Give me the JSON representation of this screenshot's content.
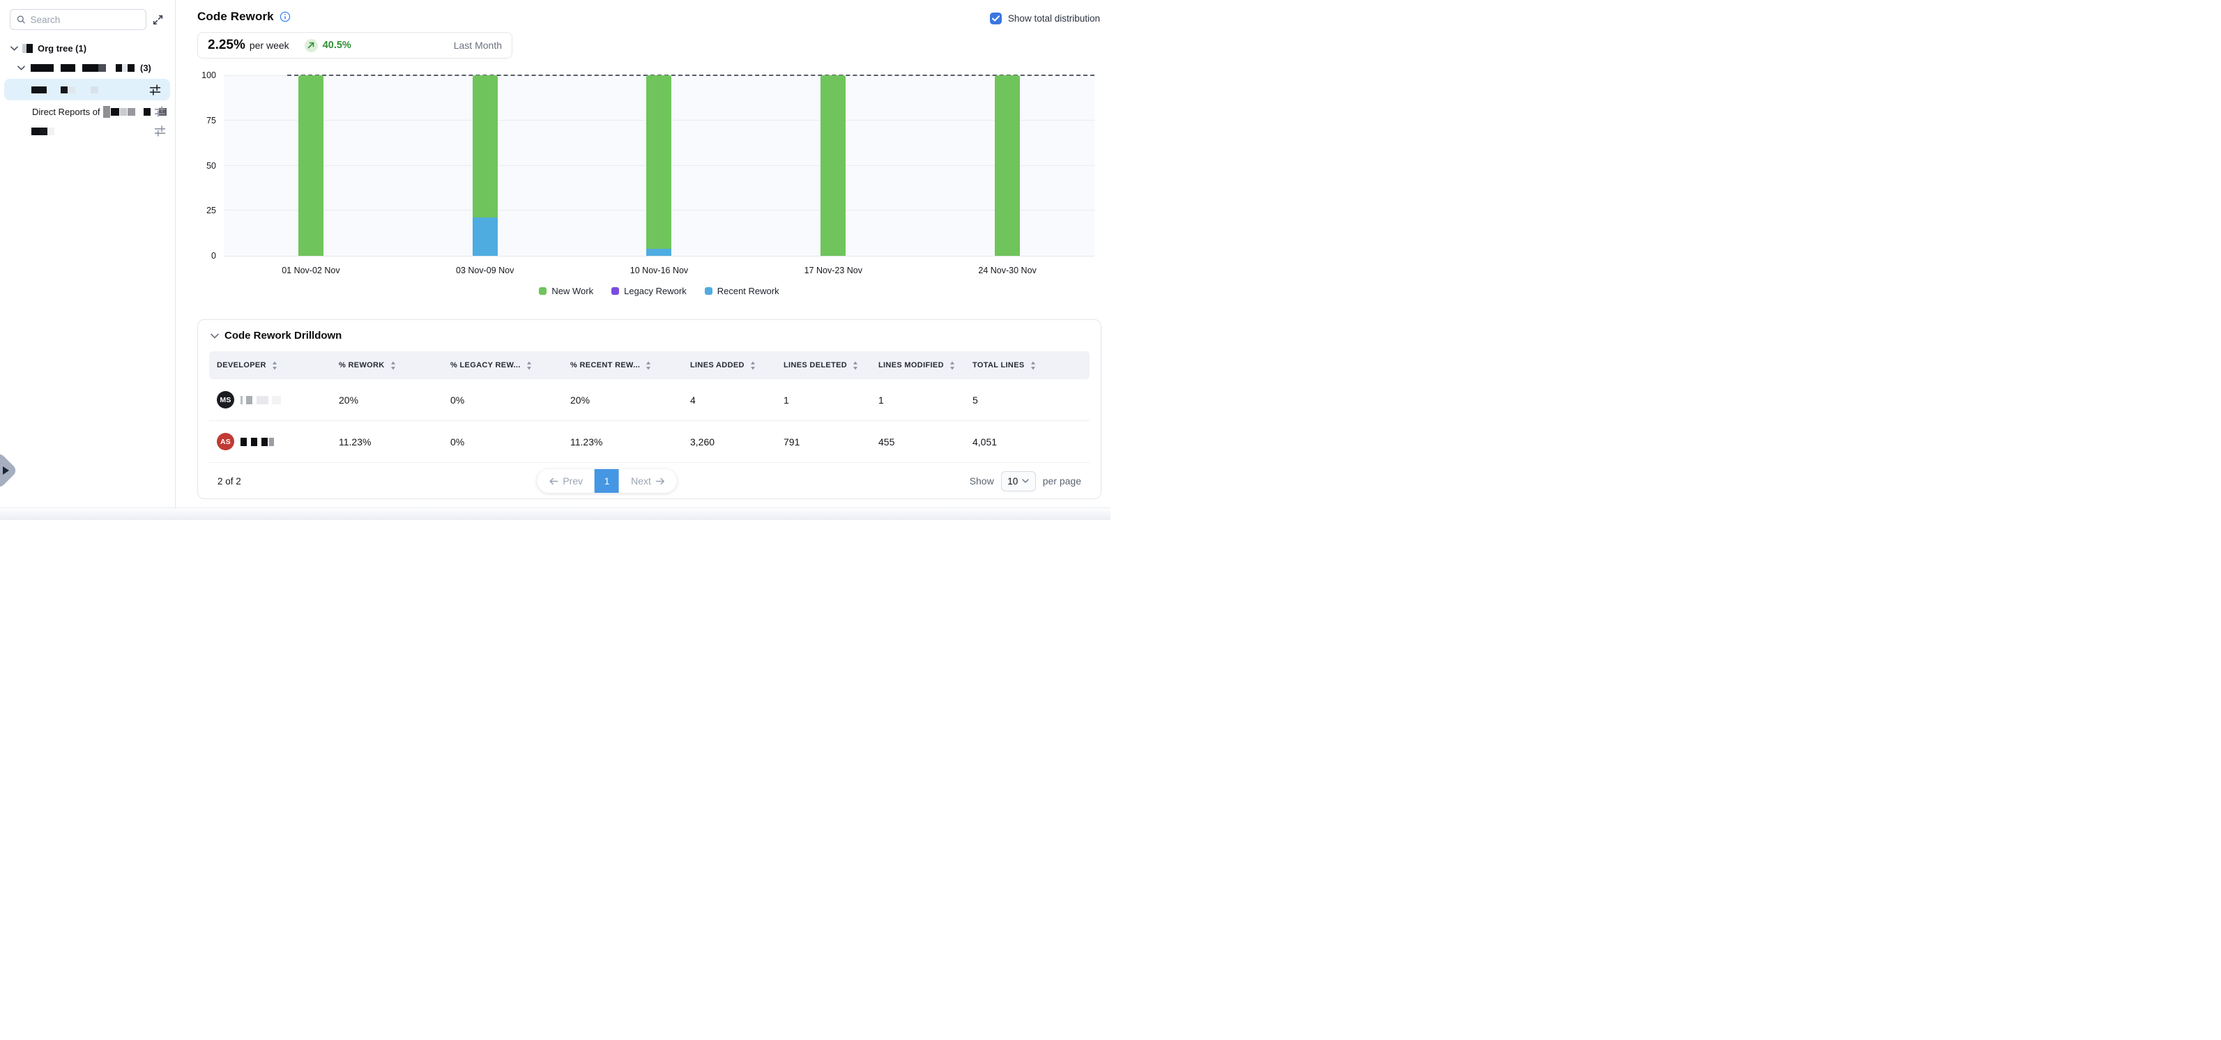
{
  "sidebar": {
    "search_placeholder": "Search",
    "org_tree": {
      "label": "Org tree (1)"
    },
    "group_row": {
      "suffix": "(3)"
    },
    "direct_reports_label": "Direct Reports of",
    "redactions": {
      "org_tree_icon": [
        {
          "w": 6,
          "h": 13,
          "c": "#c9cdd4",
          "g": 0
        },
        {
          "w": 9,
          "h": 13,
          "c": "#0e0f12",
          "g": 0
        }
      ],
      "group_row": [
        {
          "w": 33,
          "h": 11,
          "c": "#0d0e11",
          "g": 10
        },
        {
          "w": 21,
          "h": 11,
          "c": "#0d0e11",
          "g": 10
        },
        {
          "w": 23,
          "h": 11,
          "c": "#0d0e11",
          "g": 0
        },
        {
          "w": 11,
          "h": 11,
          "c": "#4a4d55",
          "g": 14
        },
        {
          "w": 9,
          "h": 11,
          "c": "#0d0e11",
          "g": 0
        },
        {
          "w": 8,
          "h": 11,
          "c": "#e3e6ea",
          "g": 0
        },
        {
          "w": 10,
          "h": 11,
          "c": "#0d0e11",
          "g": 6
        }
      ],
      "selected_row": [
        {
          "w": 22,
          "h": 10,
          "c": "#101216",
          "g": 20
        },
        {
          "w": 10,
          "h": 10,
          "c": "#15171c",
          "g": 0
        },
        {
          "w": 11,
          "h": 10,
          "c": "#dfe7ec",
          "g": 22
        },
        {
          "w": 11,
          "h": 10,
          "c": "#d8e2e8",
          "g": 0
        }
      ],
      "direct_reports_row": [
        {
          "w": 10,
          "h": 17,
          "c": "#8e9094",
          "g": 1
        },
        {
          "w": 12,
          "h": 11,
          "c": "#0e0f12",
          "g": 1
        },
        {
          "w": 10,
          "h": 11,
          "c": "#c9cbce",
          "g": 1
        },
        {
          "w": 11,
          "h": 11,
          "c": "#97999d",
          "g": 12
        },
        {
          "w": 10,
          "h": 11,
          "c": "#0e0f12",
          "g": 12
        },
        {
          "w": 11,
          "h": 11,
          "c": "#5c5e63",
          "g": 0
        }
      ],
      "last_row": [
        {
          "w": 12,
          "h": 11,
          "c": "#0e0f12",
          "g": 0
        },
        {
          "w": 11,
          "h": 11,
          "c": "#17181c",
          "g": 0
        },
        {
          "w": 10,
          "h": 11,
          "c": "#f1f2f3",
          "g": 0
        }
      ]
    }
  },
  "header": {
    "title": "Code Rework",
    "show_total_label": "Show total distribution",
    "checkbox_checked": true,
    "checkbox_color": "#3b76e0"
  },
  "stat": {
    "value": "2.25%",
    "unit": "per week",
    "delta": "40.5%",
    "delta_color": "#2f8f34",
    "period": "Last Month"
  },
  "chart_data": {
    "type": "bar",
    "stacked": true,
    "title": "Code Rework weekly distribution",
    "categories": [
      "01 Nov-02 Nov",
      "03 Nov-09 Nov",
      "10 Nov-16 Nov",
      "17 Nov-23 Nov",
      "24 Nov-30 Nov"
    ],
    "series": [
      {
        "name": "New Work",
        "color": "#6fc45c",
        "values": [
          100,
          78.7,
          96.3,
          100,
          100
        ]
      },
      {
        "name": "Legacy Rework",
        "color": "#7a4ce0",
        "values": [
          0,
          0,
          0,
          0,
          0
        ]
      },
      {
        "name": "Recent Rework",
        "color": "#4face1",
        "values": [
          0,
          21.3,
          3.7,
          0,
          0
        ]
      }
    ],
    "ylabel": "",
    "xlabel": "",
    "ylim": [
      0,
      100
    ],
    "yticks": [
      0,
      25,
      50,
      75,
      100
    ],
    "grid": true,
    "reference_line": {
      "y": 100,
      "style": "dashed"
    },
    "legend_position": "bottom"
  },
  "drilldown": {
    "title": "Code Rework Drilldown",
    "columns": [
      "Developer",
      "% Rework",
      "% Legacy Rew...",
      "% Recent Rew...",
      "Lines Added",
      "Lines Deleted",
      "Lines Modified",
      "Total Lines"
    ],
    "rows": [
      {
        "initials": "MS",
        "avatar_color": "#1b1c20",
        "name_blocks": [
          {
            "w": 3,
            "h": 12,
            "c": "#b9bcc2",
            "g": 5
          },
          {
            "w": 9,
            "h": 12,
            "c": "#a9adb5",
            "g": 6
          },
          {
            "w": 17,
            "h": 12,
            "c": "#e8e9ec",
            "g": 5
          },
          {
            "w": 13,
            "h": 12,
            "c": "#f2f3f5",
            "g": 0
          }
        ],
        "rework": "20%",
        "legacy": "0%",
        "recent": "20%",
        "added": "4",
        "deleted": "1",
        "modified": "1",
        "total": "5"
      },
      {
        "initials": "AS",
        "avatar_color": "#c13a34",
        "name_blocks": [
          {
            "w": 9,
            "h": 12,
            "c": "#0d0e11",
            "g": 6
          },
          {
            "w": 9,
            "h": 12,
            "c": "#0d0e11",
            "g": 6
          },
          {
            "w": 9,
            "h": 12,
            "c": "#0d0e11",
            "g": 2
          },
          {
            "w": 7,
            "h": 12,
            "c": "#9b9ea5",
            "g": 0
          }
        ],
        "rework": "11.23%",
        "legacy": "0%",
        "recent": "11.23%",
        "added": "3,260",
        "deleted": "791",
        "modified": "455",
        "total": "4,051"
      }
    ],
    "pagination": {
      "summary": "2 of 2",
      "prev_label": "Prev",
      "current_page": "1",
      "next_label": "Next",
      "show_label": "Show",
      "page_size": "10",
      "per_page_label": "per page"
    }
  }
}
